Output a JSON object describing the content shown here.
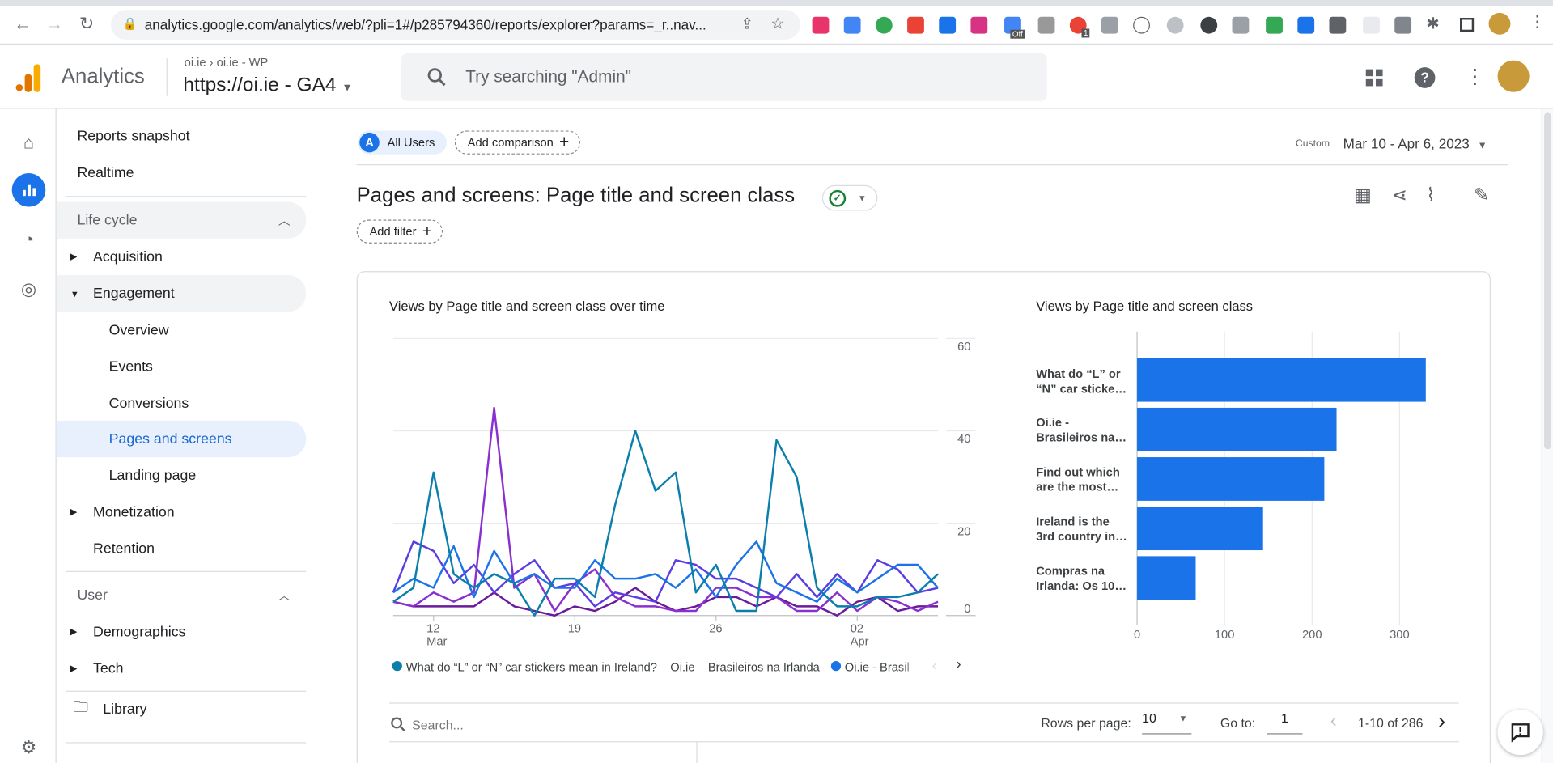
{
  "browser": {
    "url": "analytics.google.com/analytics/web/?pli=1#/p285794360/reports/explorer?params=_r..nav...",
    "extension_badges": [
      "Off",
      "1"
    ]
  },
  "header": {
    "app_name": "Analytics",
    "breadcrumb_account": "oi.ie",
    "breadcrumb_property": "oi.ie - WP",
    "property_name": "https://oi.ie - GA4",
    "search_placeholder": "Try searching \"Admin\""
  },
  "sidebar": {
    "items": [
      {
        "label": "Reports snapshot"
      },
      {
        "label": "Realtime"
      }
    ],
    "lifecycle": {
      "label": "Life cycle",
      "items": [
        {
          "label": "Acquisition",
          "expanded": false
        },
        {
          "label": "Engagement",
          "expanded": true
        },
        {
          "label": "Overview"
        },
        {
          "label": "Events"
        },
        {
          "label": "Conversions"
        },
        {
          "label": "Pages and screens",
          "active": true
        },
        {
          "label": "Landing page"
        },
        {
          "label": "Monetization",
          "expanded": false
        },
        {
          "label": "Retention"
        }
      ]
    },
    "user": {
      "label": "User",
      "items": [
        {
          "label": "Demographics"
        },
        {
          "label": "Tech"
        }
      ]
    },
    "library": "Library"
  },
  "toolbar": {
    "segment_letter": "A",
    "segment": "All Users",
    "add_comparison": "Add comparison",
    "date_label": "Custom",
    "date_range": "Mar 10 - Apr 6, 2023"
  },
  "report": {
    "title": "Pages and screens: Page title and screen class",
    "add_filter": "Add filter"
  },
  "colors": {
    "accent": "#1a73e8",
    "series": [
      "#0b7fab",
      "#1a73e8",
      "#5b3de0",
      "#8a2fd0",
      "#6a1b9a"
    ],
    "bar": "#1a73e8"
  },
  "chart_data": [
    {
      "type": "line",
      "title": "Views by Page title and screen class over time",
      "x": [
        "Mar 10",
        "Mar 11",
        "Mar 12",
        "Mar 13",
        "Mar 14",
        "Mar 15",
        "Mar 16",
        "Mar 17",
        "Mar 18",
        "Mar 19",
        "Mar 20",
        "Mar 21",
        "Mar 22",
        "Mar 23",
        "Mar 24",
        "Mar 25",
        "Mar 26",
        "Mar 27",
        "Mar 28",
        "Mar 29",
        "Mar 30",
        "Mar 31",
        "Apr 1",
        "Apr 2",
        "Apr 3",
        "Apr 4",
        "Apr 5",
        "Apr 6"
      ],
      "x_ticks": [
        {
          "label": "12",
          "sub": "Mar",
          "index": 2
        },
        {
          "label": "19",
          "sub": "",
          "index": 9
        },
        {
          "label": "26",
          "sub": "",
          "index": 16
        },
        {
          "label": "02",
          "sub": "Apr",
          "index": 23
        }
      ],
      "y_ticks": [
        "0",
        "20",
        "40",
        "60"
      ],
      "ylim": [
        0,
        60
      ],
      "y_axis": "right",
      "grid": true,
      "legend_placement": "bottom",
      "series": [
        {
          "name": "What do “L” or “N” car stickers mean in Ireland? – Oi.ie – Brasileiros na Irlanda",
          "values": [
            3,
            6,
            31,
            9,
            6,
            9,
            7,
            0,
            8,
            8,
            4,
            24,
            40,
            27,
            31,
            5,
            11,
            1,
            1,
            38,
            30,
            6,
            2,
            2,
            4,
            4,
            5,
            9
          ]
        },
        {
          "name": "Oi.ie - Brasil",
          "values": [
            5,
            8,
            6,
            15,
            4,
            14,
            7,
            9,
            6,
            6,
            12,
            8,
            8,
            9,
            6,
            10,
            4,
            11,
            16,
            7,
            5,
            3,
            8,
            5,
            8,
            11,
            11,
            6
          ]
        },
        {
          "values": [
            5,
            16,
            14,
            7,
            11,
            5,
            9,
            12,
            6,
            7,
            2,
            5,
            4,
            3,
            12,
            11,
            8,
            8,
            6,
            4,
            9,
            4,
            9,
            5,
            12,
            10,
            5,
            6
          ]
        },
        {
          "values": [
            3,
            2,
            5,
            3,
            5,
            45,
            6,
            9,
            1,
            7,
            10,
            4,
            2,
            2,
            1,
            1,
            6,
            6,
            4,
            4,
            1,
            1,
            5,
            1,
            4,
            3,
            1,
            3
          ]
        },
        {
          "values": [
            3,
            2,
            2,
            2,
            2,
            5,
            2,
            1,
            0,
            2,
            1,
            3,
            6,
            3,
            1,
            2,
            4,
            4,
            2,
            4,
            2,
            2,
            0,
            3,
            4,
            1,
            2,
            2
          ]
        }
      ]
    },
    {
      "type": "bar",
      "orientation": "horizontal",
      "title": "Views by Page title and screen class",
      "categories": [
        "What do “L” or “N” car sticke…",
        "Oi.ie - Brasileiros na…",
        "Find out which are the most…",
        "Ireland is the 3rd country in…",
        "Compras na Irlanda: Os 10…"
      ],
      "values": [
        330,
        228,
        214,
        144,
        67
      ],
      "x_ticks": [
        "0",
        "100",
        "200",
        "300"
      ],
      "xlim": [
        0,
        340
      ],
      "grid": true
    }
  ],
  "table": {
    "search_placeholder": "Search...",
    "rows_per_page_label": "Rows per page:",
    "rows_per_page": "10",
    "goto_label": "Go to:",
    "goto_value": "1",
    "pagination": "1-10 of 286"
  }
}
